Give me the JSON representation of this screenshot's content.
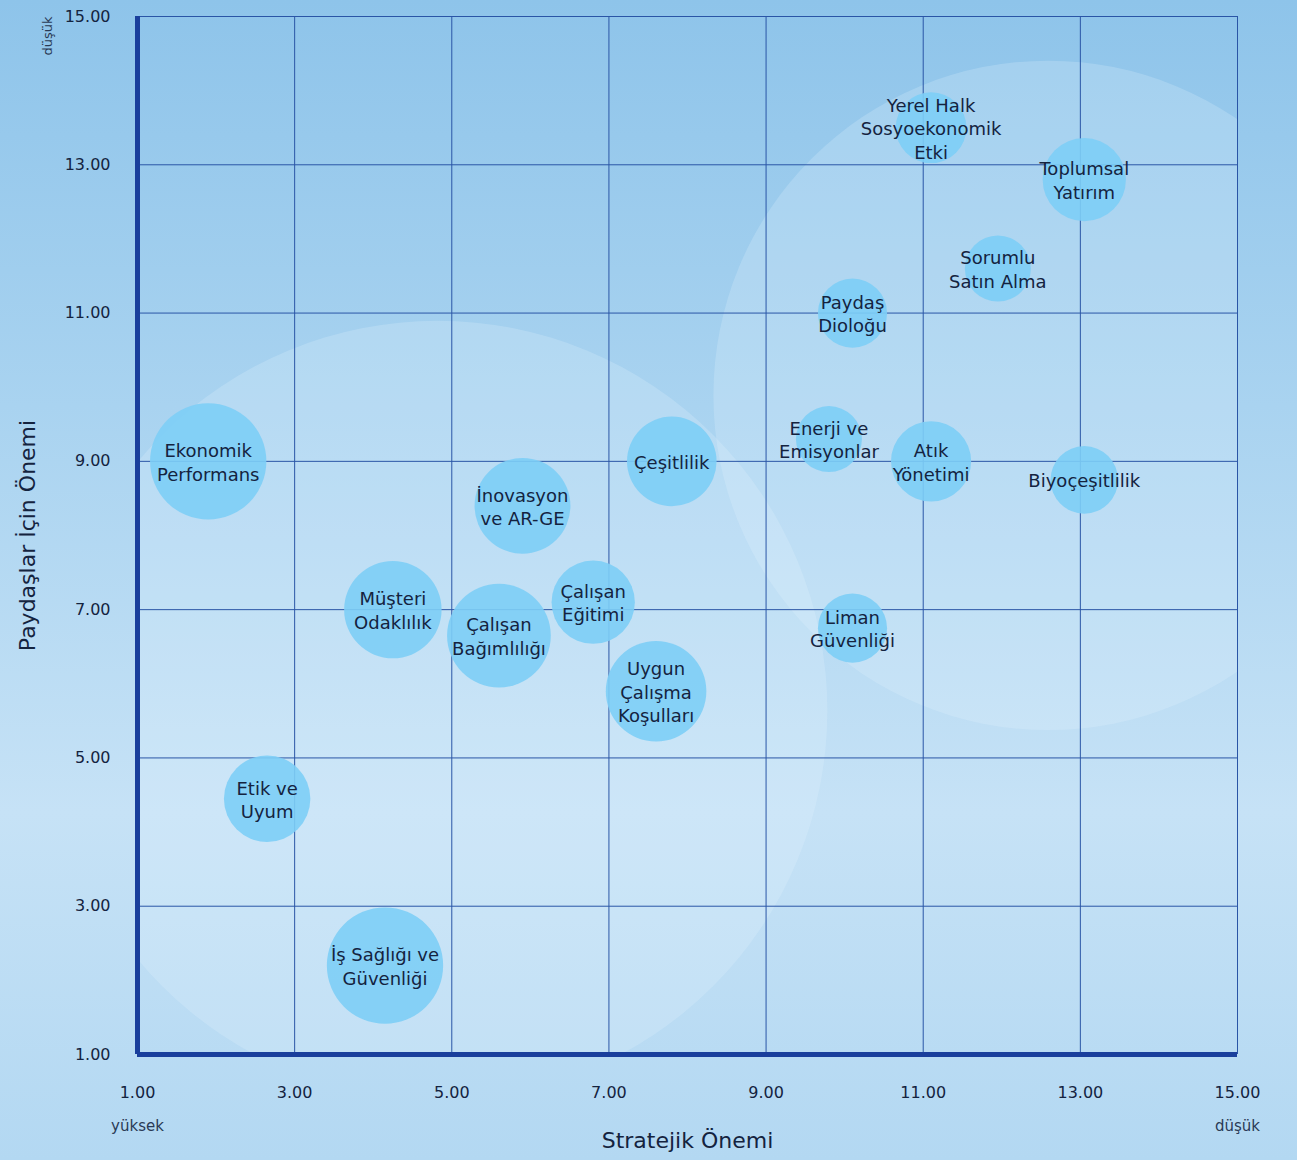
{
  "chart_data": {
    "type": "bubble",
    "x_label": "Stratejik Önemi",
    "y_label": "Paydaşlar İçin Önemi",
    "xlim": [
      1,
      15
    ],
    "ylim": [
      1,
      15
    ],
    "xticks": [
      {
        "value": 1,
        "label": "1.00"
      },
      {
        "value": 3,
        "label": "3.00"
      },
      {
        "value": 5,
        "label": "5.00"
      },
      {
        "value": 7,
        "label": "7.00"
      },
      {
        "value": 9,
        "label": "9.00"
      },
      {
        "value": 11,
        "label": "11.00"
      },
      {
        "value": 13,
        "label": "13.00"
      },
      {
        "value": 15,
        "label": "15.00"
      }
    ],
    "yticks": [
      {
        "value": 1,
        "label": "1.00"
      },
      {
        "value": 3,
        "label": "3.00"
      },
      {
        "value": 5,
        "label": "5.00"
      },
      {
        "value": 7,
        "label": "7.00"
      },
      {
        "value": 9,
        "label": "9.00"
      },
      {
        "value": 11,
        "label": "11.00"
      },
      {
        "value": 13,
        "label": "13.00"
      },
      {
        "value": 15,
        "label": "15.00"
      }
    ],
    "grid": true,
    "color": "#7dcef6",
    "annotations": [
      {
        "text": "yüksek",
        "x": 1
      },
      {
        "text": "düşük",
        "x": 15
      },
      {
        "text": "düşük",
        "y": 15
      }
    ],
    "clusters": [
      {
        "x": 4.82,
        "y": 5.64,
        "size": 4.96
      },
      {
        "x": 12.59,
        "y": 9.89,
        "size": 4.26
      }
    ],
    "points": [
      {
        "label": "Ekonomik\nPerformans",
        "x": 1.9,
        "y": 9.0,
        "size": 0.74
      },
      {
        "label": "İnovasyon\nve AR-GE",
        "x": 5.9,
        "y": 8.4,
        "size": 0.61
      },
      {
        "label": "Çeşitlilik",
        "x": 7.8,
        "y": 9.0,
        "size": 0.57
      },
      {
        "label": "Müşteri\nOdaklılık",
        "x": 4.25,
        "y": 7.0,
        "size": 0.62
      },
      {
        "label": "Çalışan\nBağımlılığı",
        "x": 5.6,
        "y": 6.65,
        "size": 0.66
      },
      {
        "label": "Çalışan\nEğitimi",
        "x": 6.8,
        "y": 7.1,
        "size": 0.53
      },
      {
        "label": "Uygun\nÇalışma\nKoşulları",
        "x": 7.6,
        "y": 5.9,
        "size": 0.64
      },
      {
        "label": "Etik ve\nUyum",
        "x": 2.65,
        "y": 4.45,
        "size": 0.55
      },
      {
        "label": "İş Sağlığı ve\nGüvenliği",
        "x": 4.15,
        "y": 2.2,
        "size": 0.74
      },
      {
        "label": "Yerel Halk\nSosyoekonomik\nEtki",
        "x": 11.1,
        "y": 13.5,
        "size": 0.45
      },
      {
        "label": "Toplumsal\nYatırım",
        "x": 13.05,
        "y": 12.8,
        "size": 0.53
      },
      {
        "label": "Sorumlu\nSatın Alma",
        "x": 11.95,
        "y": 11.6,
        "size": 0.42
      },
      {
        "label": "Paydaş\nDioloğu",
        "x": 10.1,
        "y": 11.0,
        "size": 0.44
      },
      {
        "label": "Enerji ve\nEmisyonlar",
        "x": 9.8,
        "y": 9.3,
        "size": 0.42
      },
      {
        "label": "Atık\nYönetimi",
        "x": 11.1,
        "y": 9.0,
        "size": 0.51
      },
      {
        "label": "Biyoçeşitlilik",
        "x": 13.05,
        "y": 8.75,
        "size": 0.43
      },
      {
        "label": "Liman\nGüvenliği",
        "x": 10.1,
        "y": 6.75,
        "size": 0.44
      }
    ]
  }
}
